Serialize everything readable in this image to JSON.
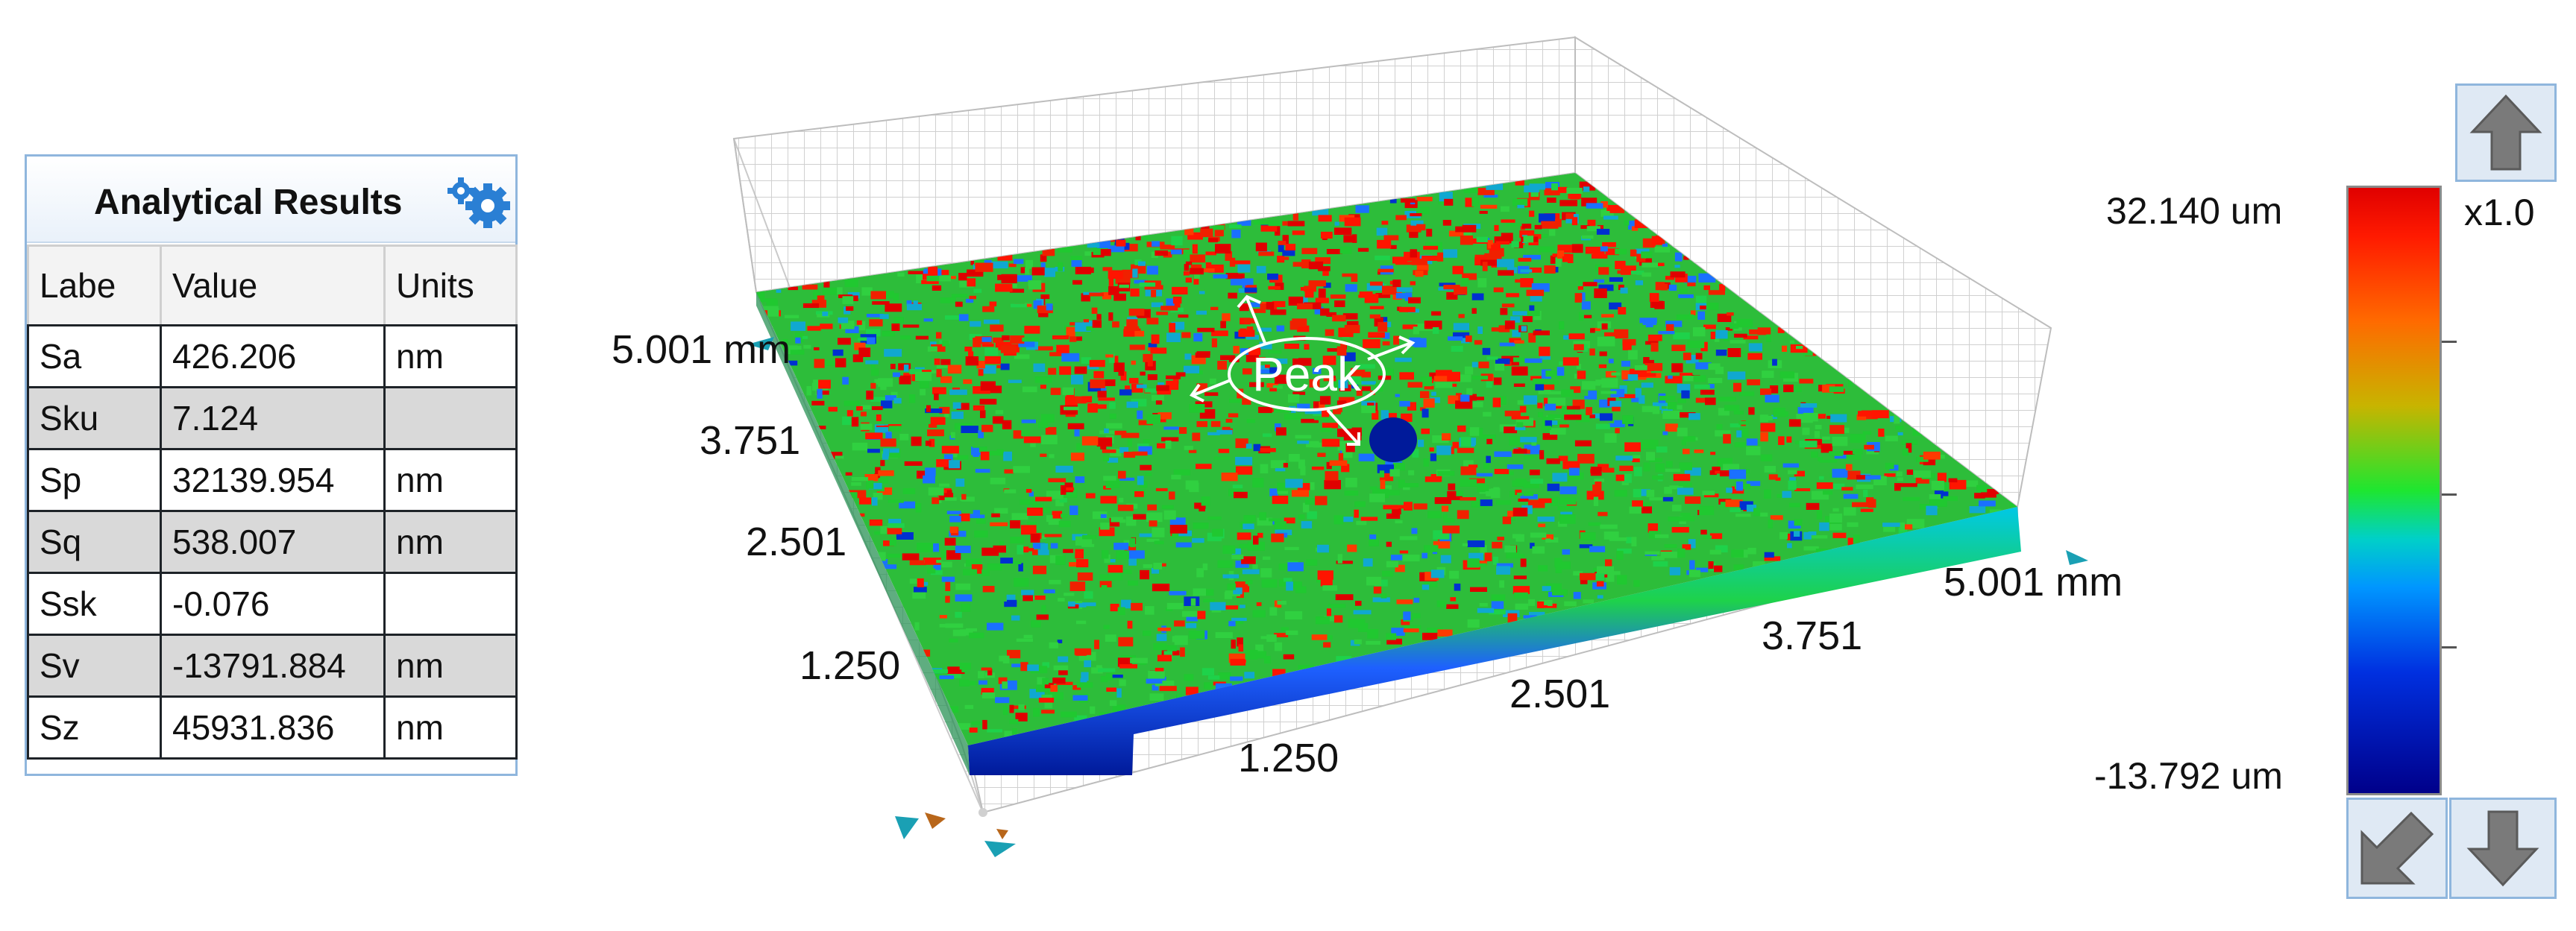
{
  "panel": {
    "title": "Analytical Results",
    "headers": [
      "Labe",
      "Value",
      "Units"
    ],
    "rows": [
      {
        "label": "Sa",
        "value": "426.206",
        "unit": "nm"
      },
      {
        "label": "Sku",
        "value": "7.124",
        "unit": ""
      },
      {
        "label": "Sp",
        "value": "32139.954",
        "unit": "nm"
      },
      {
        "label": "Sq",
        "value": "538.007",
        "unit": "nm"
      },
      {
        "label": "Ssk",
        "value": "-0.076",
        "unit": ""
      },
      {
        "label": "Sv",
        "value": "-13791.884",
        "unit": "nm"
      },
      {
        "label": "Sz",
        "value": "45931.836",
        "unit": "nm"
      }
    ]
  },
  "plot": {
    "annotation": "Peak",
    "y_axis_ticks": [
      "5.001 mm",
      "3.751",
      "2.501",
      "1.250"
    ],
    "x_axis_ticks": [
      "5.001 mm",
      "3.751",
      "2.501",
      "1.250"
    ]
  },
  "colorscale": {
    "max": "32.140 um",
    "min": "-13.792 um",
    "factor": "x1.0",
    "colors": [
      "#e00000",
      "#ff6a00",
      "#1ee630",
      "#0096ff",
      "#00008a"
    ]
  },
  "icons": {
    "settings": "gear-icon",
    "up": "arrow-up-icon",
    "down": "arrow-down-icon",
    "diagonal": "arrow-down-left-icon"
  }
}
